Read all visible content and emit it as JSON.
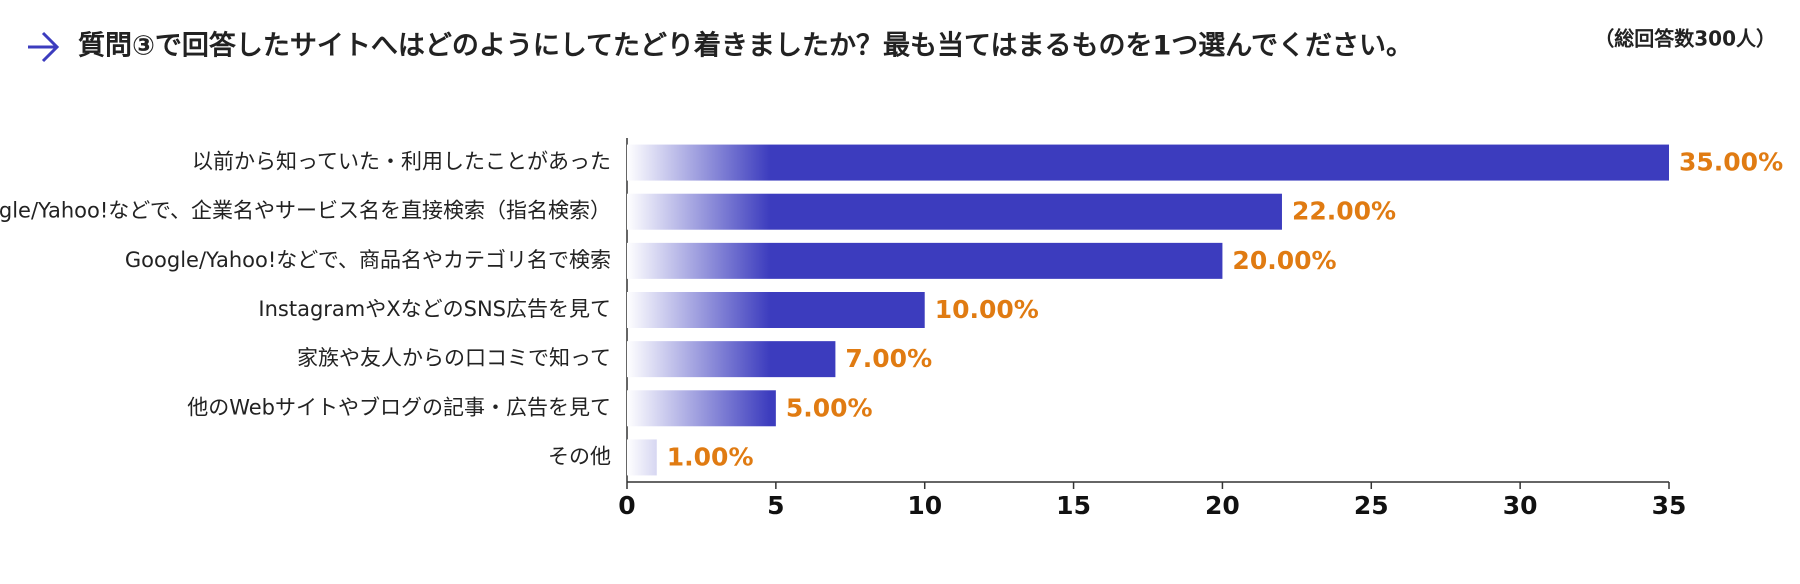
{
  "chart_data": {
    "type": "bar",
    "orientation": "horizontal",
    "title": "質問③で回答したサイトへはどのようにしてたどり着きましたか？最も当てはまるものを1つ選んでください。",
    "annotation": "（総回答数300人）",
    "categories": [
      "以前から知っていた・利用したことがあった",
      "Google/Yahoo!などで、企業名やサービス名を直接検索（指名検索）",
      "Google/Yahoo!などで、商品名やカテゴリ名で検索",
      "InstagramやXなどのSNS広告を見て",
      "家族や友人からの口コミで知って",
      "他のWebサイトやブログの記事・広告を見て",
      "その他"
    ],
    "values": [
      35,
      22,
      20,
      10,
      7,
      5,
      1
    ],
    "value_labels": [
      "35.00%",
      "22.00%",
      "20.00%",
      "10.00%",
      "7.00%",
      "5.00%",
      "1.00%"
    ],
    "color": "#3c3cbe",
    "value_label_color": "#e07b12",
    "xlim": [
      0,
      35
    ],
    "xticks": [
      0,
      5,
      10,
      15,
      20,
      25,
      30,
      35
    ],
    "grid": false
  }
}
